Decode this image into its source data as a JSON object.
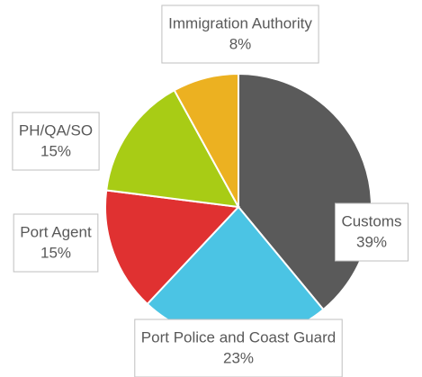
{
  "chart_data": {
    "type": "pie",
    "categories": [
      "Customs",
      "Port Police and Coast Guard",
      "Port Agent",
      "PH/QA/SO",
      "Immigration Authority"
    ],
    "values": [
      39,
      23,
      15,
      15,
      8
    ],
    "value_labels": [
      "39%",
      "23%",
      "15%",
      "15%",
      "8%"
    ],
    "colors": [
      "#5a5a5a",
      "#4bc4e4",
      "#e03131",
      "#a8cc15",
      "#ecb121"
    ]
  }
}
